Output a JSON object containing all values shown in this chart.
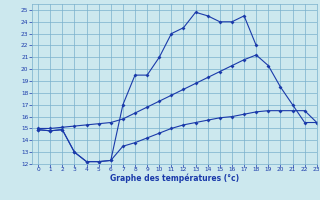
{
  "line1_x": [
    0,
    1,
    2,
    3,
    4,
    5,
    6,
    7,
    8,
    9,
    10,
    11,
    12,
    13,
    14,
    15,
    16,
    17,
    18
  ],
  "line1_y": [
    14.9,
    14.8,
    14.9,
    13.0,
    12.2,
    12.2,
    12.3,
    17.0,
    19.5,
    19.5,
    21.0,
    23.0,
    23.5,
    24.8,
    24.5,
    24.0,
    24.0,
    24.5,
    22.0
  ],
  "line2_x": [
    0,
    1,
    2,
    3,
    4,
    5,
    6,
    7,
    8,
    9,
    10,
    11,
    12,
    13,
    14,
    15,
    16,
    17,
    18,
    19,
    20,
    21,
    22,
    23
  ],
  "line2_y": [
    15.0,
    15.0,
    15.1,
    15.2,
    15.3,
    15.4,
    15.5,
    15.8,
    16.3,
    16.8,
    17.3,
    17.8,
    18.3,
    18.8,
    19.3,
    19.8,
    20.3,
    20.8,
    21.2,
    20.3,
    18.5,
    17.0,
    15.5,
    15.5
  ],
  "line3_x": [
    0,
    1,
    2,
    3,
    4,
    5,
    6,
    7,
    8,
    9,
    10,
    11,
    12,
    13,
    14,
    15,
    16,
    17,
    18,
    19,
    20,
    21,
    22,
    23
  ],
  "line3_y": [
    14.9,
    14.8,
    14.9,
    13.0,
    12.2,
    12.2,
    12.3,
    13.5,
    13.8,
    14.2,
    14.6,
    15.0,
    15.3,
    15.5,
    15.7,
    15.9,
    16.0,
    16.2,
    16.4,
    16.5,
    16.5,
    16.5,
    16.5,
    15.5
  ],
  "line_color": "#1a3aaa",
  "bg_color": "#cce8ee",
  "grid_color": "#7ab0cc",
  "xlabel": "Graphe des températures (°c)",
  "xlim": [
    -0.5,
    23
  ],
  "ylim": [
    12,
    25.5
  ],
  "xticks": [
    0,
    1,
    2,
    3,
    4,
    5,
    6,
    7,
    8,
    9,
    10,
    11,
    12,
    13,
    14,
    15,
    16,
    17,
    18,
    19,
    20,
    21,
    22,
    23
  ],
  "yticks": [
    12,
    13,
    14,
    15,
    16,
    17,
    18,
    19,
    20,
    21,
    22,
    23,
    24,
    25
  ]
}
